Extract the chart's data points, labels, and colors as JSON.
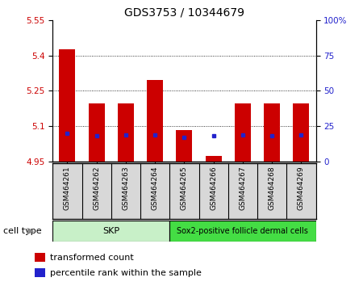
{
  "title": "GDS3753 / 10344679",
  "samples": [
    "GSM464261",
    "GSM464262",
    "GSM464263",
    "GSM464264",
    "GSM464265",
    "GSM464266",
    "GSM464267",
    "GSM464268",
    "GSM464269"
  ],
  "transformed_count": [
    5.425,
    5.195,
    5.195,
    5.295,
    5.085,
    4.975,
    5.195,
    5.195,
    5.195
  ],
  "percentile_rank": [
    20,
    18,
    19,
    19,
    17,
    18,
    19,
    18,
    19
  ],
  "base_value": 4.95,
  "ylim_left": [
    4.95,
    5.55
  ],
  "ylim_right": [
    0,
    100
  ],
  "yticks_left": [
    4.95,
    5.1,
    5.25,
    5.4,
    5.55
  ],
  "yticks_left_labels": [
    "4.95",
    "5.1",
    "5.25",
    "5.4",
    "5.55"
  ],
  "yticks_right": [
    0,
    25,
    50,
    75,
    100
  ],
  "yticks_right_labels": [
    "0",
    "25",
    "50",
    "75",
    "100%"
  ],
  "grid_values": [
    5.1,
    5.25,
    5.4
  ],
  "bar_color": "#cc0000",
  "dot_color": "#2222cc",
  "bar_width": 0.55,
  "skp_color": "#c8f0c8",
  "sox2_color": "#44dd44",
  "cell_type_label": "cell type",
  "legend_items": [
    {
      "color": "#cc0000",
      "label": "transformed count"
    },
    {
      "color": "#2222cc",
      "label": "percentile rank within the sample"
    }
  ],
  "background_color": "#ffffff",
  "tick_label_color_left": "#cc0000",
  "tick_label_color_right": "#2222cc",
  "skp_samples": 4,
  "sox2_samples": 5
}
